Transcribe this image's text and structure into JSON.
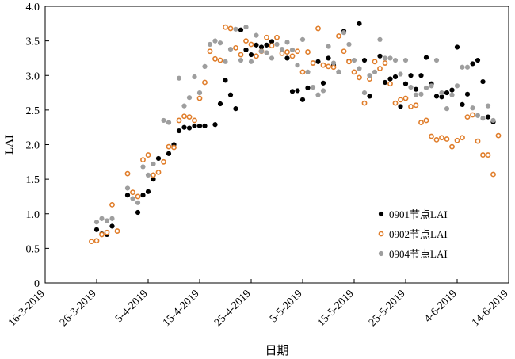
{
  "chart_data": {
    "type": "scatter",
    "xlabel": "日期",
    "ylabel": "LAI",
    "ylim": [
      0,
      4.0
    ],
    "xlim": [
      "2019-03-16",
      "2019-06-14"
    ],
    "x_ticks": [
      "16-3-2019",
      "26-3-2019",
      "5-4-2019",
      "15-4-2019",
      "25-4-2019",
      "5-5-2019",
      "15-5-2019",
      "25-5-2019",
      "4-6-2019",
      "14-6-2019"
    ],
    "y_ticks": [
      "0",
      "0.5",
      "1.0",
      "1.5",
      "2.0",
      "2.5",
      "3.0",
      "3.5",
      "4.0"
    ],
    "legend_position": "lower-right",
    "series": [
      {
        "name": "0901节点LAI",
        "color": "#000000",
        "marker": "filled-circle",
        "x": [
          "2019-03-25",
          "2019-03-26",
          "2019-03-27",
          "2019-03-28",
          "2019-03-29",
          "2019-04-01",
          "2019-04-03",
          "2019-04-04",
          "2019-04-05",
          "2019-04-06",
          "2019-04-07",
          "2019-04-09",
          "2019-04-10",
          "2019-04-11",
          "2019-04-12",
          "2019-04-13",
          "2019-04-14",
          "2019-04-15",
          "2019-04-16",
          "2019-04-18",
          "2019-04-19",
          "2019-04-20",
          "2019-04-21",
          "2019-04-22",
          "2019-04-23",
          "2019-04-24",
          "2019-04-25",
          "2019-04-26",
          "2019-04-27",
          "2019-04-28",
          "2019-04-29",
          "2019-04-30",
          "2019-05-01",
          "2019-05-02",
          "2019-05-03",
          "2019-05-04",
          "2019-05-05",
          "2019-05-06",
          "2019-05-08",
          "2019-05-09",
          "2019-05-10",
          "2019-05-11",
          "2019-05-12",
          "2019-05-13",
          "2019-05-14",
          "2019-05-16",
          "2019-05-17",
          "2019-05-18",
          "2019-05-20",
          "2019-05-21",
          "2019-05-22",
          "2019-05-23",
          "2019-05-24",
          "2019-05-25",
          "2019-05-26",
          "2019-05-27",
          "2019-05-28",
          "2019-05-29",
          "2019-05-30",
          "2019-05-31",
          "2019-06-01",
          "2019-06-02",
          "2019-06-03",
          "2019-06-04",
          "2019-06-05",
          "2019-06-06",
          "2019-06-07",
          "2019-06-08",
          "2019-06-09",
          "2019-06-10",
          "2019-06-11"
        ],
        "values": [
          0.6,
          0.77,
          0.71,
          0.7,
          0.82,
          1.27,
          1.02,
          1.27,
          1.32,
          1.5,
          1.8,
          1.87,
          2.0,
          2.2,
          2.25,
          2.24,
          2.27,
          2.27,
          2.27,
          2.29,
          2.59,
          2.93,
          2.72,
          2.52,
          3.66,
          3.37,
          3.3,
          3.44,
          3.41,
          3.44,
          3.49,
          3.55,
          3.34,
          3.25,
          2.77,
          2.78,
          2.65,
          2.82,
          3.2,
          2.89,
          3.25,
          3.15,
          3.05,
          3.64,
          3.21,
          3.75,
          3.22,
          2.7,
          3.28,
          2.9,
          2.95,
          2.98,
          2.55,
          2.88,
          3.0,
          2.8,
          3.0,
          3.26,
          2.88,
          2.7,
          2.69,
          2.75,
          2.79,
          3.41,
          2.58,
          2.73,
          3.17,
          3.22,
          2.91,
          2.4,
          2.33
        ]
      },
      {
        "name": "0902节点LAI",
        "color": "#E07D2A",
        "marker": "open-circle",
        "x": [
          "2019-03-25",
          "2019-03-26",
          "2019-03-27",
          "2019-03-28",
          "2019-03-29",
          "2019-03-30",
          "2019-04-01",
          "2019-04-02",
          "2019-04-03",
          "2019-04-04",
          "2019-04-05",
          "2019-04-06",
          "2019-04-07",
          "2019-04-08",
          "2019-04-09",
          "2019-04-10",
          "2019-04-11",
          "2019-04-12",
          "2019-04-13",
          "2019-04-14",
          "2019-04-15",
          "2019-04-16",
          "2019-04-17",
          "2019-04-18",
          "2019-04-19",
          "2019-04-20",
          "2019-04-21",
          "2019-04-22",
          "2019-04-23",
          "2019-04-24",
          "2019-04-25",
          "2019-04-26",
          "2019-04-27",
          "2019-04-28",
          "2019-04-29",
          "2019-04-30",
          "2019-05-01",
          "2019-05-02",
          "2019-05-03",
          "2019-05-04",
          "2019-05-05",
          "2019-05-06",
          "2019-05-07",
          "2019-05-08",
          "2019-05-09",
          "2019-05-10",
          "2019-05-11",
          "2019-05-12",
          "2019-05-13",
          "2019-05-14",
          "2019-05-15",
          "2019-05-16",
          "2019-05-17",
          "2019-05-18",
          "2019-05-19",
          "2019-05-20",
          "2019-05-21",
          "2019-05-22",
          "2019-05-23",
          "2019-05-24",
          "2019-05-25",
          "2019-05-26",
          "2019-05-27",
          "2019-05-28",
          "2019-05-29",
          "2019-05-30",
          "2019-05-31",
          "2019-06-01",
          "2019-06-02",
          "2019-06-03",
          "2019-06-04",
          "2019-06-05",
          "2019-06-06",
          "2019-06-07",
          "2019-06-08",
          "2019-06-09",
          "2019-06-10",
          "2019-06-11",
          "2019-06-12"
        ],
        "values": [
          0.6,
          0.61,
          0.7,
          0.73,
          1.13,
          0.75,
          1.58,
          1.31,
          1.25,
          1.78,
          1.85,
          1.56,
          1.6,
          1.75,
          1.97,
          1.96,
          2.35,
          2.41,
          2.4,
          2.35,
          2.67,
          2.9,
          3.35,
          3.24,
          3.22,
          3.7,
          3.68,
          3.4,
          3.3,
          3.5,
          3.45,
          3.28,
          3.35,
          3.55,
          3.43,
          3.55,
          3.32,
          3.34,
          3.28,
          3.35,
          3.05,
          3.34,
          3.18,
          3.68,
          3.15,
          3.13,
          3.12,
          3.57,
          3.35,
          3.2,
          3.05,
          2.97,
          2.6,
          2.95,
          3.2,
          3.1,
          3.18,
          2.88,
          2.6,
          2.65,
          2.67,
          2.55,
          2.57,
          2.32,
          2.35,
          2.12,
          2.07,
          2.1,
          2.08,
          1.97,
          2.06,
          2.1,
          2.4,
          2.43,
          2.05,
          1.85,
          1.85,
          1.57,
          2.13
        ]
      },
      {
        "name": "0904节点LAI",
        "color": "#9E9E9E",
        "marker": "filled-circle",
        "x": [
          "2019-03-26",
          "2019-03-27",
          "2019-03-28",
          "2019-03-29",
          "2019-04-01",
          "2019-04-02",
          "2019-04-03",
          "2019-04-04",
          "2019-04-05",
          "2019-04-06",
          "2019-04-08",
          "2019-04-09",
          "2019-04-11",
          "2019-04-12",
          "2019-04-13",
          "2019-04-14",
          "2019-04-15",
          "2019-04-16",
          "2019-04-17",
          "2019-04-18",
          "2019-04-19",
          "2019-04-20",
          "2019-04-21",
          "2019-04-22",
          "2019-04-23",
          "2019-04-24",
          "2019-04-25",
          "2019-04-26",
          "2019-04-27",
          "2019-04-28",
          "2019-04-29",
          "2019-04-30",
          "2019-05-01",
          "2019-05-02",
          "2019-05-03",
          "2019-05-04",
          "2019-05-05",
          "2019-05-06",
          "2019-05-07",
          "2019-05-08",
          "2019-05-09",
          "2019-05-10",
          "2019-05-11",
          "2019-05-12",
          "2019-05-13",
          "2019-05-14",
          "2019-05-15",
          "2019-05-16",
          "2019-05-17",
          "2019-05-18",
          "2019-05-19",
          "2019-05-20",
          "2019-05-21",
          "2019-05-22",
          "2019-05-23",
          "2019-05-24",
          "2019-05-25",
          "2019-05-26",
          "2019-05-27",
          "2019-05-28",
          "2019-05-29",
          "2019-05-30",
          "2019-05-31",
          "2019-06-01",
          "2019-06-02",
          "2019-06-03",
          "2019-06-04",
          "2019-06-05",
          "2019-06-06",
          "2019-06-07",
          "2019-06-08",
          "2019-06-09",
          "2019-06-10",
          "2019-06-11"
        ],
        "values": [
          0.88,
          0.93,
          0.9,
          0.93,
          1.37,
          1.22,
          1.16,
          1.68,
          1.56,
          1.72,
          2.35,
          2.32,
          2.96,
          2.56,
          2.68,
          2.98,
          2.75,
          3.13,
          3.45,
          3.5,
          3.47,
          3.2,
          3.38,
          3.67,
          3.22,
          3.7,
          3.2,
          3.58,
          3.35,
          3.33,
          3.25,
          3.45,
          3.38,
          3.48,
          3.37,
          3.15,
          3.52,
          3.05,
          2.83,
          2.72,
          2.78,
          3.42,
          3.18,
          3.05,
          3.62,
          3.45,
          3.22,
          3.1,
          2.75,
          3.0,
          3.05,
          3.52,
          3.25,
          3.25,
          3.22,
          3.02,
          3.22,
          2.83,
          2.72,
          2.73,
          2.82,
          2.85,
          3.22,
          2.75,
          2.52,
          2.72,
          2.85,
          3.12,
          3.12,
          2.53,
          2.42,
          2.38,
          2.56,
          2.35
        ]
      }
    ]
  }
}
